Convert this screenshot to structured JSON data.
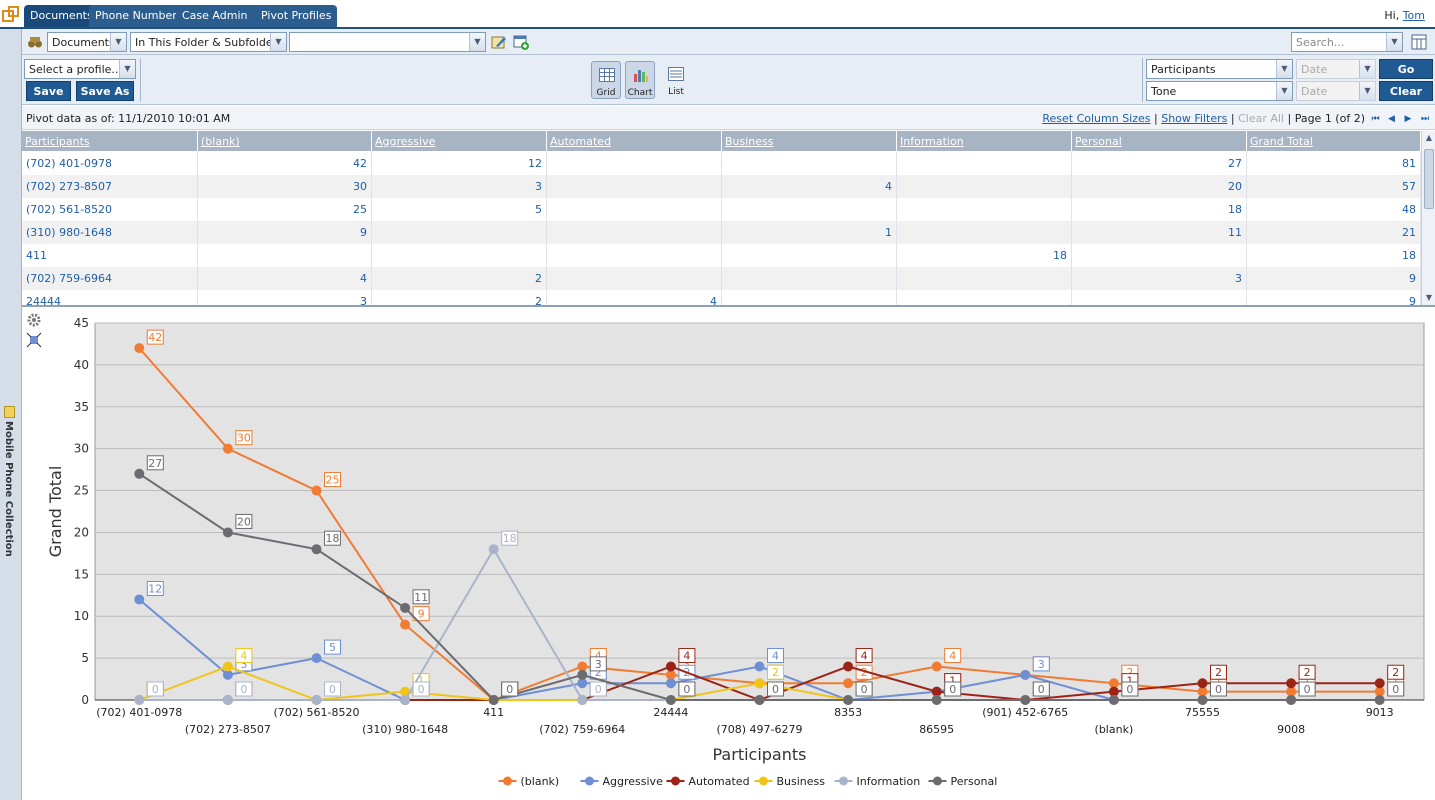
{
  "app": {
    "tabs": [
      {
        "label": "Documents",
        "active": true
      },
      {
        "label": "Phone Numbers",
        "active": false
      },
      {
        "label": "Case Admin",
        "active": false
      },
      {
        "label": "Pivot Profiles",
        "active": false
      }
    ],
    "greeting_prefix": "Hi,",
    "user_name": "Tom"
  },
  "sidebar": {
    "label": "Mobile Phone Collection"
  },
  "toolbar": {
    "scope_select": "Documents",
    "folder_select": "In This Folder & Subfolders",
    "path_select": "",
    "search_placeholder": "Search..."
  },
  "profile_bar": {
    "profile_select": "Select a profile...",
    "save_label": "Save",
    "save_as_label": "Save As",
    "views": [
      {
        "label": "Grid",
        "active": true,
        "icon": "grid-icon"
      },
      {
        "label": "Chart",
        "active": true,
        "icon": "chart-icon"
      },
      {
        "label": "List",
        "active": false,
        "icon": "list-icon"
      }
    ],
    "field1": "Participants",
    "field2": "Tone",
    "date1": "Date",
    "date2": "Date",
    "go_label": "Go",
    "clear_label": "Clear"
  },
  "status": {
    "pivot_as_of": "Pivot data as of: 11/1/2010 10:01 AM",
    "reset_columns": "Reset Column Sizes",
    "show_filters": "Show Filters",
    "clear_all": "Clear All",
    "page_info": "Page 1 (of 2)"
  },
  "grid": {
    "columns": [
      "Participants",
      "(blank)",
      "Aggressive",
      "Automated",
      "Business",
      "Information",
      "Personal",
      "Grand Total"
    ],
    "rows": [
      [
        "(702) 401-0978",
        "42",
        "12",
        "",
        "",
        "",
        "27",
        "81"
      ],
      [
        "(702) 273-8507",
        "30",
        "3",
        "",
        "4",
        "",
        "20",
        "57"
      ],
      [
        "(702) 561-8520",
        "25",
        "5",
        "",
        "",
        "",
        "18",
        "48"
      ],
      [
        "(310) 980-1648",
        "9",
        "",
        "",
        "1",
        "",
        "11",
        "21"
      ],
      [
        "411",
        "",
        "",
        "",
        "",
        "18",
        "",
        "18"
      ],
      [
        "(702) 759-6964",
        "4",
        "2",
        "",
        "",
        "",
        "3",
        "9"
      ],
      [
        "24444",
        "3",
        "2",
        "4",
        "",
        "",
        "",
        "9"
      ]
    ]
  },
  "chart_data": {
    "type": "line",
    "xlabel": "Participants",
    "ylabel": "Grand Total",
    "ylim": [
      0,
      45
    ],
    "yticks": [
      0,
      5,
      10,
      15,
      20,
      25,
      30,
      35,
      40,
      45
    ],
    "grid": true,
    "legend_position": "bottom",
    "categories": [
      "(702) 401-0978",
      "(702) 273-8507",
      "(702) 561-8520",
      "(310) 980-1648",
      "411",
      "(702) 759-6964",
      "24444",
      "(708) 497-6279",
      "8353",
      "86595",
      "(901) 452-6765",
      "(blank)",
      "75555",
      "9008",
      "9013"
    ],
    "series": [
      {
        "name": "(blank)",
        "color": "#f07c33",
        "values": [
          42,
          30,
          25,
          9,
          0,
          4,
          3,
          2,
          2,
          4,
          3,
          2,
          1,
          1,
          1
        ]
      },
      {
        "name": "Aggressive",
        "color": "#6f8fd4",
        "values": [
          12,
          3,
          5,
          0,
          0,
          2,
          2,
          4,
          0,
          1,
          3,
          0,
          0,
          0,
          0
        ]
      },
      {
        "name": "Automated",
        "color": "#9c2417",
        "values": [
          0,
          0,
          0,
          0,
          0,
          0,
          4,
          0,
          4,
          1,
          0,
          1,
          2,
          2,
          2
        ]
      },
      {
        "name": "Business",
        "color": "#f0c419",
        "values": [
          0,
          4,
          0,
          1,
          0,
          0,
          0,
          2,
          0,
          0,
          0,
          0,
          0,
          0,
          0
        ]
      },
      {
        "name": "Information",
        "color": "#a9b4cc",
        "values": [
          0,
          0,
          0,
          0,
          18,
          0,
          0,
          0,
          0,
          0,
          0,
          0,
          0,
          0,
          0
        ]
      },
      {
        "name": "Personal",
        "color": "#6b6b70",
        "values": [
          27,
          20,
          18,
          11,
          0,
          3,
          0,
          0,
          0,
          0,
          0,
          0,
          0,
          0,
          0
        ]
      }
    ]
  },
  "colors": {
    "nav": "#2c5d8f",
    "button": "#1f5a92",
    "link": "#1f5fa6",
    "grid_header": "#a7b4c4",
    "plot_bg": "#e3e3e3"
  }
}
